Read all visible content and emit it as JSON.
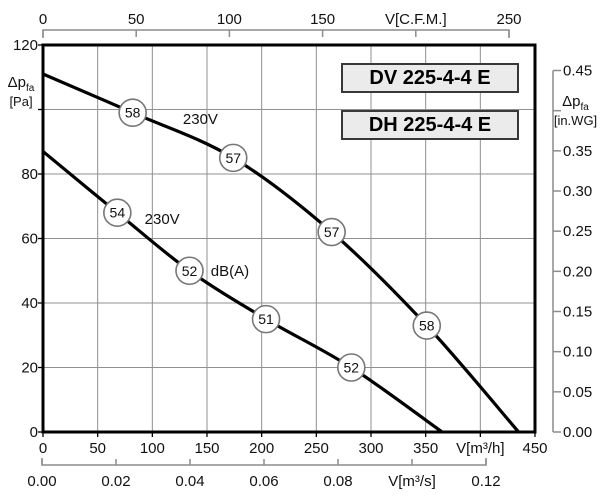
{
  "colors": {
    "curve": "#000000",
    "grid": "#909090",
    "bracket": "#8c8c8c",
    "border": "#000000",
    "text": "#111111",
    "box_fill": "#ebebeb",
    "box_border": "#383838",
    "badge_stroke": "#777777",
    "badge_fill": "#ffffff"
  },
  "model_box": {
    "line1": "DV 225-4-4 E",
    "line2": "DH 225-4-4 E"
  },
  "axis_titles": {
    "left_main": "Δp",
    "left_sub": "fa",
    "left_unit": "[Pa]",
    "right_main": "Δp",
    "right_sub": "fa",
    "right_unit": "[in.WG]"
  },
  "chart_data": {
    "type": "line",
    "title": "Fan pressure-flow performance curves",
    "grid": {
      "x_step": 50,
      "y_step": 20,
      "grid_on": true
    },
    "x_bottom": {
      "unit": "V[m³/h]",
      "min": 0,
      "max": 450,
      "ticks": [
        0,
        50,
        100,
        150,
        200,
        250,
        300,
        350,
        400,
        450
      ],
      "tick_labels": [
        "0",
        "50",
        "100",
        "150",
        "200",
        "250",
        "300",
        "350",
        "V[m³/h]",
        "450"
      ]
    },
    "x_bottom2": {
      "unit": "V[m³/s]",
      "min": 0,
      "max": 0.12,
      "ticks": [
        0,
        0.02,
        0.04,
        0.06,
        0.08,
        0.1,
        0.12
      ],
      "tick_labels": [
        "0.00",
        "0.02",
        "0.04",
        "0.06",
        "0.08",
        "V[m³/s]",
        "0.12"
      ]
    },
    "x_top": {
      "unit": "V[C.F.M.]",
      "min": 0,
      "max": 250,
      "ticks": [
        0,
        50,
        100,
        150,
        200,
        250
      ],
      "tick_labels": [
        "0",
        "50",
        "100",
        "150",
        "V[C.F.M.]",
        "250"
      ]
    },
    "y_left": {
      "unit": "Δpfa [Pa]",
      "min": 0,
      "max": 120,
      "ticks": [
        0,
        20,
        40,
        60,
        80,
        100,
        120
      ],
      "tick_labels": [
        "0",
        "20",
        "40",
        "60",
        "80",
        "",
        "120"
      ]
    },
    "y_right": {
      "unit": "Δpfa [in.WG]",
      "min": 0,
      "max": 0.45,
      "ticks": [
        0,
        0.05,
        0.1,
        0.15,
        0.2,
        0.25,
        0.3,
        0.35,
        0.4,
        0.45
      ],
      "tick_labels": [
        "0.00",
        "0.05",
        "0.10",
        "0.15",
        "0.20",
        "0.25",
        "0.30",
        "0.35",
        "",
        "0.45"
      ]
    },
    "series": [
      {
        "name": "230V (upper curve)",
        "points": [
          [
            0,
            111
          ],
          [
            82,
            99
          ],
          [
            174,
            85
          ],
          [
            264,
            62
          ],
          [
            351,
            33
          ],
          [
            435,
            0
          ]
        ],
        "noise_badges": [
          {
            "db": "58",
            "v": 82,
            "p": 99
          },
          {
            "db": "57",
            "v": 174,
            "p": 85
          },
          {
            "db": "57",
            "v": 264,
            "p": 62
          },
          {
            "db": "58",
            "v": 351,
            "p": 33
          }
        ]
      },
      {
        "name": "230V (lower curve)",
        "points": [
          [
            0,
            87
          ],
          [
            68,
            68
          ],
          [
            134,
            50
          ],
          [
            204,
            35
          ],
          [
            282,
            20
          ],
          [
            365,
            0
          ]
        ],
        "noise_badges": [
          {
            "db": "54",
            "v": 68,
            "p": 68
          },
          {
            "db": "52",
            "v": 134,
            "p": 50
          },
          {
            "db": "51",
            "v": 204,
            "p": 35
          },
          {
            "db": "52",
            "v": 282,
            "p": 20
          }
        ]
      }
    ],
    "annotations": [
      {
        "text": "230V",
        "v": 144,
        "p": 97
      },
      {
        "text": "230V",
        "v": 109,
        "p": 66
      },
      {
        "text": "dB(A)",
        "v": 171,
        "p": 50
      }
    ]
  }
}
